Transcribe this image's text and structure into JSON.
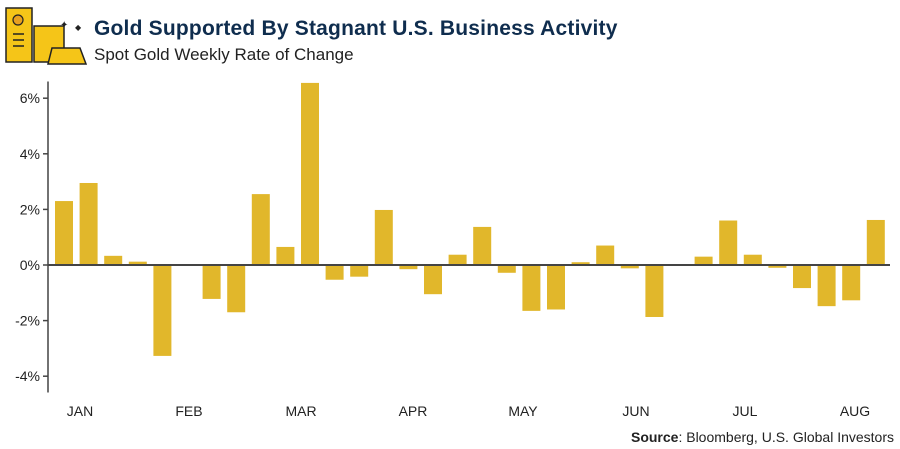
{
  "header": {
    "title": "Gold Supported By Stagnant U.S. Business Activity",
    "subtitle": "Spot Gold Weekly Rate of Change",
    "logo_icon": "gold-bars-icon"
  },
  "source": {
    "label": "Source",
    "text": ": Bloomberg, U.S. Global Investors"
  },
  "colors": {
    "bar": "#E1B72B",
    "title": "#0f2d4e",
    "axis": "#444444"
  },
  "chart_data": {
    "type": "bar",
    "title": "Spot Gold Weekly Rate of Change",
    "ylim": [
      -4.3,
      6.6
    ],
    "yticks": [
      -4,
      -2,
      0,
      2,
      4,
      6
    ],
    "ytick_labels": [
      "-4%",
      "-2%",
      "0%",
      "2%",
      "4%",
      "6%"
    ],
    "month_labels": [
      "JAN",
      "FEB",
      "MAR",
      "APR",
      "MAY",
      "JUN",
      "JUL",
      "AUG"
    ],
    "grid": false,
    "values": [
      2.3,
      2.95,
      0.33,
      0.12,
      -3.27,
      0.03,
      -1.22,
      -1.7,
      2.55,
      0.65,
      6.55,
      -0.53,
      -0.42,
      1.98,
      -0.15,
      -1.05,
      0.37,
      1.37,
      -0.28,
      -1.65,
      -1.6,
      0.1,
      0.7,
      -0.12,
      -1.87,
      -0.03,
      0.3,
      1.6,
      0.37,
      -0.1,
      -0.83,
      -1.48,
      -1.27,
      1.62
    ]
  }
}
